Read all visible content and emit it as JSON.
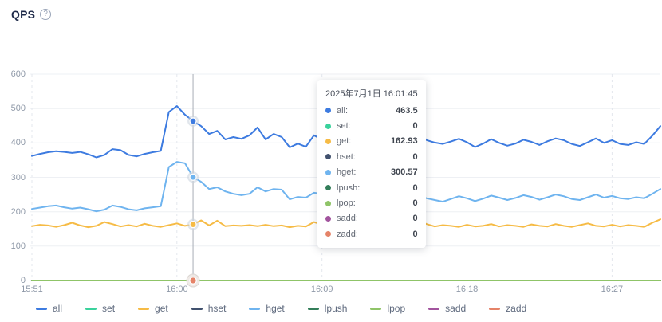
{
  "title": "QPS",
  "icons": {
    "help_glyph": "?"
  },
  "tooltip": {
    "timestamp": "2025年7月1日 16:01:45",
    "rows": [
      {
        "label": "all:",
        "value": "463.5"
      },
      {
        "label": "set:",
        "value": "0"
      },
      {
        "label": "get:",
        "value": "162.93"
      },
      {
        "label": "hset:",
        "value": "0"
      },
      {
        "label": "hget:",
        "value": "300.57"
      },
      {
        "label": "lpush:",
        "value": "0"
      },
      {
        "label": "lpop:",
        "value": "0"
      },
      {
        "label": "sadd:",
        "value": "0"
      },
      {
        "label": "zadd:",
        "value": "0"
      }
    ]
  },
  "legend": {
    "items": [
      "all",
      "set",
      "get",
      "hset",
      "hget",
      "lpush",
      "lpop",
      "sadd",
      "zadd"
    ]
  },
  "chart_data": {
    "type": "line",
    "title": "QPS",
    "x_axis": {
      "start": "15:51",
      "end": "16:30",
      "interval_seconds": 30,
      "tick_labels": [
        "15:51",
        "16:00",
        "16:09",
        "16:18",
        "16:27"
      ],
      "tick_indices": [
        0,
        18,
        36,
        54,
        72
      ]
    },
    "y_axis": {
      "min": 0,
      "max": 600,
      "tick_step": 100,
      "tick_labels": [
        "0",
        "100",
        "200",
        "300",
        "400",
        "500",
        "600"
      ]
    },
    "grid": true,
    "legend_position": "bottom",
    "series": [
      {
        "name": "all",
        "color": "#3d7be0",
        "values": [
          362,
          368,
          373,
          376,
          374,
          371,
          374,
          367,
          358,
          365,
          382,
          379,
          365,
          361,
          368,
          373,
          377,
          490,
          507,
          482,
          463.5,
          449,
          426,
          435,
          410,
          417,
          412,
          422,
          445,
          410,
          426,
          417,
          387,
          398,
          389,
          422,
          410,
          417,
          398,
          408,
          426,
          403,
          390,
          398,
          413,
          408,
          404,
          412,
          429,
          408,
          401,
          397,
          404,
          412,
          402,
          388,
          398,
          411,
          400,
          392,
          398,
          409,
          403,
          394,
          405,
          413,
          408,
          397,
          391,
          402,
          413,
          400,
          408,
          397,
          394,
          402,
          397,
          421,
          449
        ]
      },
      {
        "name": "set",
        "color": "#3ad29c",
        "constant": 0
      },
      {
        "name": "get",
        "color": "#f6bb45",
        "values": [
          158,
          162,
          160,
          156,
          161,
          168,
          160,
          155,
          159,
          170,
          164,
          157,
          161,
          157,
          165,
          159,
          156,
          161,
          166,
          159,
          162.93,
          175,
          160,
          174,
          158,
          160,
          159,
          161,
          158,
          162,
          158,
          160,
          155,
          159,
          157,
          170,
          162,
          158,
          159,
          156,
          163,
          159,
          155,
          161,
          166,
          159,
          157,
          162,
          175,
          164,
          157,
          161,
          159,
          156,
          162,
          157,
          159,
          164,
          157,
          161,
          159,
          156,
          163,
          159,
          157,
          164,
          159,
          156,
          161,
          166,
          159,
          157,
          162,
          157,
          161,
          159,
          156,
          168,
          178
        ]
      },
      {
        "name": "hset",
        "color": "#41516e",
        "constant": 0
      },
      {
        "name": "hget",
        "color": "#6fb4ef",
        "values": [
          208,
          212,
          216,
          218,
          213,
          209,
          212,
          207,
          201,
          206,
          218,
          214,
          207,
          204,
          210,
          213,
          216,
          330,
          345,
          341,
          300.57,
          287,
          266,
          271,
          259,
          252,
          248,
          252,
          271,
          259,
          266,
          264,
          236,
          243,
          241,
          255,
          252,
          250,
          241,
          248,
          257,
          244,
          234,
          241,
          252,
          257,
          261,
          254,
          247,
          239,
          234,
          229,
          237,
          245,
          239,
          231,
          238,
          247,
          241,
          234,
          240,
          248,
          243,
          235,
          242,
          250,
          245,
          237,
          234,
          242,
          250,
          241,
          246,
          239,
          237,
          242,
          239,
          252,
          266
        ]
      },
      {
        "name": "lpush",
        "color": "#337e5a",
        "constant": 0
      },
      {
        "name": "lpop",
        "color": "#8fc468",
        "constant": 0
      },
      {
        "name": "sadd",
        "color": "#a2549e",
        "constant": 0
      },
      {
        "name": "zadd",
        "color": "#e58368",
        "constant": 0
      }
    ],
    "highlight": {
      "index": 20,
      "time_label": "2025年7月1日 16:01:45",
      "values": {
        "all": 463.5,
        "set": 0,
        "get": 162.93,
        "hset": 0,
        "hget": 300.57,
        "lpush": 0,
        "lpop": 0,
        "sadd": 0,
        "zadd": 0
      }
    }
  }
}
